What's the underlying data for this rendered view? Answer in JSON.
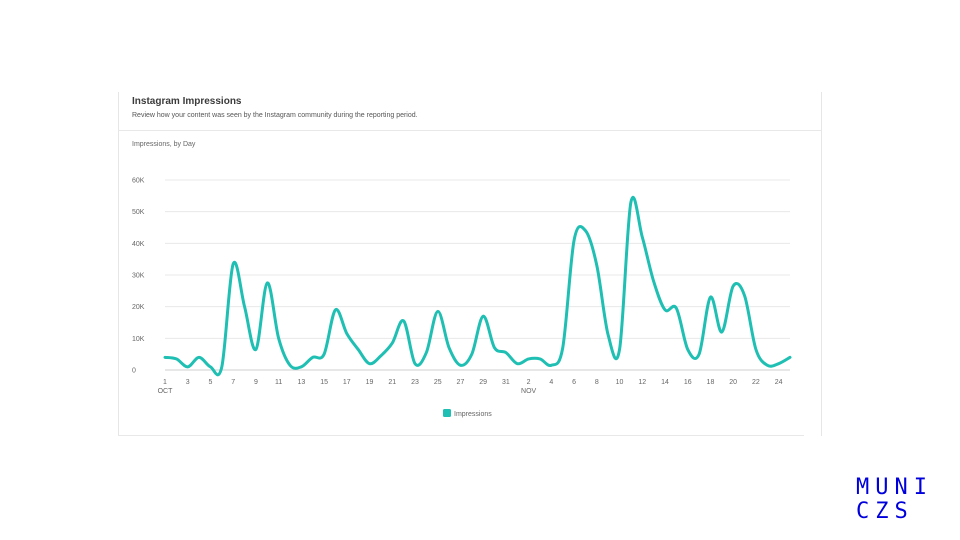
{
  "card": {
    "title": "Instagram Impressions",
    "subtitle": "Review how your content was seen by the Instagram community during the reporting period.",
    "chart_label": "Impressions, by Day"
  },
  "logo": {
    "line1": "MUNI",
    "line2": "CZS",
    "color": "#0000dc"
  },
  "colors": {
    "series": "#1fbfb3",
    "grid": "#e8e8e8",
    "text": "#666666"
  },
  "chart_data": {
    "type": "line",
    "title": "Impressions, by Day",
    "xlabel": "",
    "ylabel": "",
    "ylim": [
      0,
      60000
    ],
    "yticks": [
      "0",
      "10K",
      "20K",
      "30K",
      "40K",
      "50K",
      "60K"
    ],
    "xticks": [
      "1",
      "3",
      "5",
      "7",
      "9",
      "11",
      "13",
      "15",
      "17",
      "19",
      "21",
      "23",
      "25",
      "27",
      "29",
      "31",
      "2",
      "4",
      "6",
      "8",
      "10",
      "12",
      "14",
      "16",
      "18",
      "20",
      "22",
      "24"
    ],
    "month_labels": [
      {
        "at": "1",
        "label": "OCT"
      },
      {
        "at": "2",
        "label": "NOV"
      }
    ],
    "grid": true,
    "legend": "bottom-center",
    "series": [
      {
        "name": "Impressions",
        "x": [
          "Oct 1",
          "Oct 2",
          "Oct 3",
          "Oct 4",
          "Oct 5",
          "Oct 6",
          "Oct 7",
          "Oct 8",
          "Oct 9",
          "Oct 10",
          "Oct 11",
          "Oct 12",
          "Oct 13",
          "Oct 14",
          "Oct 15",
          "Oct 16",
          "Oct 17",
          "Oct 18",
          "Oct 19",
          "Oct 20",
          "Oct 21",
          "Oct 22",
          "Oct 23",
          "Oct 24",
          "Oct 25",
          "Oct 26",
          "Oct 27",
          "Oct 28",
          "Oct 29",
          "Oct 30",
          "Oct 31",
          "Nov 1",
          "Nov 2",
          "Nov 3",
          "Nov 4",
          "Nov 5",
          "Nov 6",
          "Nov 7",
          "Nov 8",
          "Nov 9",
          "Nov 10",
          "Nov 11",
          "Nov 12",
          "Nov 13",
          "Nov 14",
          "Nov 15",
          "Nov 16",
          "Nov 17",
          "Nov 18",
          "Nov 19",
          "Nov 20",
          "Nov 21",
          "Nov 22",
          "Nov 23",
          "Nov 24",
          "Nov 25"
        ],
        "values": [
          4000,
          3500,
          1000,
          4000,
          1000,
          1000,
          33500,
          20000,
          6500,
          27500,
          10000,
          1500,
          1000,
          4000,
          5000,
          19000,
          11500,
          6500,
          2000,
          4500,
          8500,
          15500,
          2000,
          5500,
          18500,
          7000,
          1500,
          5000,
          17000,
          7000,
          5500,
          2000,
          3500,
          3500,
          1500,
          7000,
          41000,
          44000,
          33000,
          11000,
          6500,
          53000,
          42000,
          28000,
          19000,
          19500,
          6500,
          5000,
          23000,
          12000,
          26500,
          23500,
          6500,
          1500,
          2000,
          4000
        ]
      }
    ]
  }
}
